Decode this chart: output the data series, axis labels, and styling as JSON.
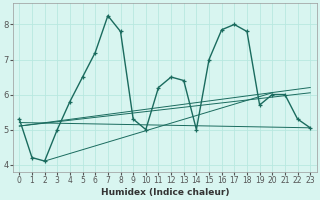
{
  "xlabel": "Humidex (Indice chaleur)",
  "x": [
    0,
    1,
    2,
    3,
    4,
    5,
    6,
    7,
    8,
    9,
    10,
    11,
    12,
    13,
    14,
    15,
    16,
    17,
    18,
    19,
    20,
    21,
    22,
    23
  ],
  "main_y": [
    5.3,
    4.2,
    4.1,
    5.0,
    5.8,
    6.5,
    7.2,
    8.25,
    7.8,
    5.3,
    5.0,
    6.2,
    6.5,
    6.4,
    5.0,
    7.0,
    7.85,
    8.0,
    7.8,
    5.7,
    6.0,
    6.0,
    5.3,
    5.05
  ],
  "fan_lines": [
    {
      "x0": 0,
      "y0": 5.2,
      "x1": 23,
      "y1": 5.05
    },
    {
      "x0": 0,
      "y0": 5.1,
      "x1": 23,
      "y1": 6.05
    },
    {
      "x0": 0,
      "y0": 5.1,
      "x1": 23,
      "y1": 6.2
    },
    {
      "x0": 2,
      "y0": 4.1,
      "x1": 20,
      "y1": 6.05
    }
  ],
  "ylim": [
    3.8,
    8.6
  ],
  "xlim": [
    -0.5,
    23.5
  ],
  "yticks": [
    4,
    5,
    6,
    7,
    8
  ],
  "xticks": [
    0,
    1,
    2,
    3,
    4,
    5,
    6,
    7,
    8,
    9,
    10,
    11,
    12,
    13,
    14,
    15,
    16,
    17,
    18,
    19,
    20,
    21,
    22,
    23
  ],
  "line_color": "#1a6b5e",
  "bg_color": "#d8f5f0",
  "grid_color": "#b8e8e0",
  "tick_color": "#555555"
}
